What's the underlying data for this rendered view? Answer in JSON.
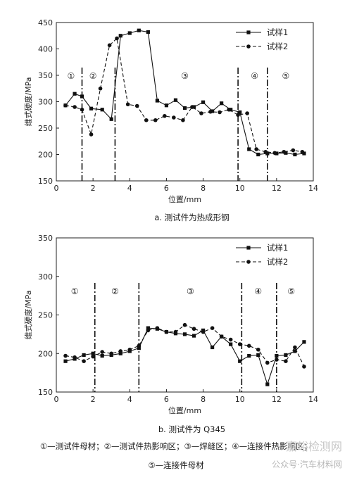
{
  "chart_data": [
    {
      "type": "line",
      "title": "a. 测试件为热成形钢",
      "xlabel": "位置/mm",
      "ylabel": "维式硬度/MPa",
      "xlim": [
        0,
        14
      ],
      "ylim": [
        150,
        450
      ],
      "xticks": [
        0,
        2,
        4,
        6,
        8,
        10,
        12,
        14
      ],
      "yticks": [
        150,
        200,
        250,
        300,
        350,
        400,
        450
      ],
      "legend_position": "top-right",
      "grid": false,
      "zone_boundaries": [
        1.4,
        3.2,
        9.9,
        11.5
      ],
      "zones": [
        {
          "label": "①",
          "x": 0.8
        },
        {
          "label": "②",
          "x": 2.0
        },
        {
          "label": "③",
          "x": 7.0
        },
        {
          "label": "④",
          "x": 10.8
        },
        {
          "label": "⑤",
          "x": 12.5
        }
      ],
      "series": [
        {
          "name": "试样1",
          "style": "solid",
          "marker": "square",
          "x": [
            0.5,
            1.0,
            1.4,
            1.9,
            2.5,
            3.0,
            3.5,
            4.0,
            4.5,
            5.0,
            5.5,
            6.0,
            6.5,
            7.0,
            7.5,
            8.0,
            8.5,
            9.0,
            9.5,
            10.0,
            10.5,
            11.0,
            11.5,
            12.0,
            12.5,
            13.0,
            13.5
          ],
          "y": [
            293,
            315,
            310,
            287,
            285,
            267,
            425,
            430,
            435,
            432,
            302,
            293,
            303,
            288,
            290,
            299,
            282,
            297,
            285,
            280,
            210,
            200,
            202,
            202,
            203,
            200,
            202
          ]
        },
        {
          "name": "试样2",
          "style": "dashed",
          "marker": "circle",
          "x": [
            0.5,
            1.0,
            1.4,
            1.9,
            2.4,
            2.9,
            3.3,
            3.9,
            4.4,
            4.9,
            5.4,
            5.9,
            6.4,
            6.9,
            7.4,
            7.9,
            8.4,
            8.9,
            9.4,
            9.9,
            10.4,
            10.9,
            11.4,
            11.9,
            12.4,
            12.9,
            13.4
          ],
          "y": [
            293,
            290,
            285,
            238,
            325,
            407,
            420,
            295,
            292,
            265,
            265,
            273,
            270,
            265,
            290,
            278,
            281,
            280,
            285,
            275,
            278,
            210,
            205,
            203,
            205,
            208,
            205
          ]
        }
      ]
    },
    {
      "type": "line",
      "title": "b. 测试件为 Q345",
      "xlabel": "位置/mm",
      "ylabel": "维式硬度/MPa",
      "xlim": [
        0,
        14
      ],
      "ylim": [
        150,
        350
      ],
      "xticks": [
        0,
        2,
        4,
        6,
        8,
        10,
        12,
        14
      ],
      "yticks": [
        150,
        200,
        250,
        300,
        350
      ],
      "legend_position": "top-right",
      "grid": false,
      "zone_boundaries": [
        2.1,
        4.5,
        10.1,
        12.0
      ],
      "zones": [
        {
          "label": "①",
          "x": 1.0
        },
        {
          "label": "②",
          "x": 3.2
        },
        {
          "label": "③",
          "x": 7.3
        },
        {
          "label": "④",
          "x": 11.0
        },
        {
          "label": "⑤",
          "x": 12.8
        }
      ],
      "series": [
        {
          "name": "试样1",
          "style": "solid",
          "marker": "square",
          "x": [
            0.5,
            1.0,
            1.5,
            2.0,
            2.5,
            3.0,
            3.5,
            4.0,
            4.5,
            5.0,
            5.5,
            6.0,
            6.5,
            7.0,
            7.5,
            8.0,
            8.5,
            9.0,
            9.5,
            10.0,
            10.5,
            11.0,
            11.5,
            12.0,
            12.5,
            13.0,
            13.5
          ],
          "y": [
            190,
            193,
            198,
            200,
            197,
            198,
            200,
            203,
            207,
            233,
            232,
            228,
            226,
            225,
            223,
            230,
            208,
            222,
            212,
            190,
            197,
            198,
            160,
            197,
            198,
            203,
            215
          ]
        },
        {
          "name": "试样2",
          "style": "dashed",
          "marker": "circle",
          "x": [
            0.5,
            1.0,
            1.5,
            2.0,
            2.5,
            3.0,
            3.5,
            4.0,
            4.5,
            5.0,
            5.5,
            6.0,
            6.5,
            7.0,
            7.5,
            8.0,
            8.5,
            9.0,
            9.5,
            10.0,
            10.5,
            11.0,
            11.5,
            12.0,
            12.5,
            13.0,
            13.5
          ],
          "y": [
            197,
            195,
            190,
            196,
            202,
            200,
            203,
            205,
            210,
            230,
            233,
            228,
            228,
            237,
            232,
            228,
            233,
            222,
            218,
            212,
            210,
            205,
            188,
            192,
            190,
            208,
            183
          ]
        }
      ]
    }
  ],
  "footnote": {
    "line1": "①—测试件母材；②—测试件热影响区；③—焊缝区；④—连接件热影响区；",
    "line2": "⑤—连接件母材"
  },
  "watermark": {
    "text1": "嘉峪检测网",
    "text2": "公众号·汽车材料网"
  }
}
